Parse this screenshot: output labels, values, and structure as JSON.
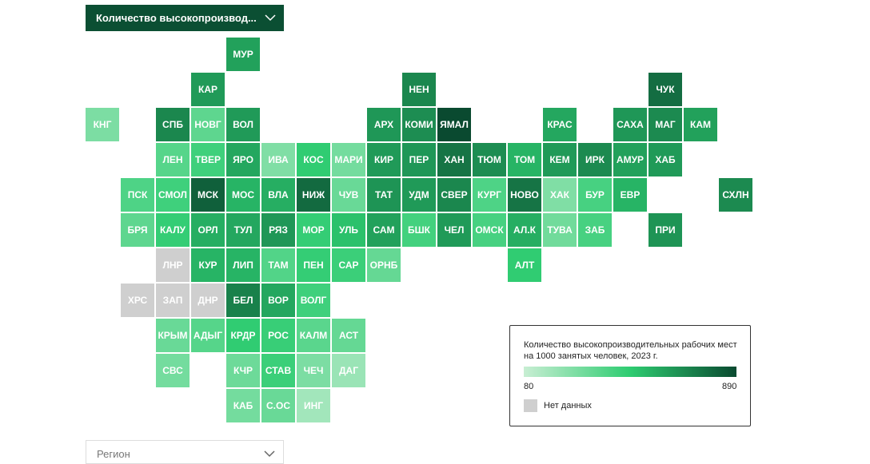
{
  "dropdown": {
    "label": "Количество высокопроизвод..."
  },
  "map": {
    "type": "tile-map",
    "scale": {
      "min": 80,
      "max": 890,
      "colors": [
        "#c8eed3",
        "#2ecc71",
        "#0a4a30"
      ]
    },
    "no_data_color": "#cfcfcf",
    "tiles": [
      {
        "label": "МУР",
        "value": 620
      },
      {
        "label": "КАР",
        "value": 640
      },
      {
        "label": "НЕН",
        "value": 700
      },
      {
        "label": "ЧУК",
        "value": 780
      },
      {
        "label": "КНГ",
        "value": 280
      },
      {
        "label": "СПБ",
        "value": 700
      },
      {
        "label": "НОВГ",
        "value": 360
      },
      {
        "label": "ВОЛ",
        "value": 640
      },
      {
        "label": "АРХ",
        "value": 650
      },
      {
        "label": "КОМИ",
        "value": 680
      },
      {
        "label": "ЯМАЛ",
        "value": 890
      },
      {
        "label": "КРАС",
        "value": 600
      },
      {
        "label": "САХА",
        "value": 650
      },
      {
        "label": "МАГ",
        "value": 690
      },
      {
        "label": "КАМ",
        "value": 620
      },
      {
        "label": "ЛЕН",
        "value": 380
      },
      {
        "label": "ТВЕР",
        "value": 440
      },
      {
        "label": "ЯРО",
        "value": 600
      },
      {
        "label": "ИВА",
        "value": 270
      },
      {
        "label": "КОС",
        "value": 480
      },
      {
        "label": "МАРИ",
        "value": 300
      },
      {
        "label": "КИР",
        "value": 640
      },
      {
        "label": "ПЕР",
        "value": 650
      },
      {
        "label": "ХАН",
        "value": 760
      },
      {
        "label": "ТЮМ",
        "value": 680
      },
      {
        "label": "ТОМ",
        "value": 560
      },
      {
        "label": "КЕМ",
        "value": 640
      },
      {
        "label": "ИРК",
        "value": 690
      },
      {
        "label": "АМУР",
        "value": 620
      },
      {
        "label": "ХАБ",
        "value": 640
      },
      {
        "label": "ПСК",
        "value": 400
      },
      {
        "label": "СМОЛ",
        "value": 440
      },
      {
        "label": "МСК",
        "value": 820
      },
      {
        "label": "МОС",
        "value": 560
      },
      {
        "label": "ВЛА",
        "value": 580
      },
      {
        "label": "НИЖ",
        "value": 790
      },
      {
        "label": "ЧУВ",
        "value": 330
      },
      {
        "label": "ТАТ",
        "value": 660
      },
      {
        "label": "УДМ",
        "value": 640
      },
      {
        "label": "СВЕР",
        "value": 700
      },
      {
        "label": "КУРГ",
        "value": 400
      },
      {
        "label": "НОВО",
        "value": 760
      },
      {
        "label": "ХАК",
        "value": 270
      },
      {
        "label": "БУР",
        "value": 420
      },
      {
        "label": "ЕВР",
        "value": 560
      },
      {
        "label": "СХЛН",
        "value": 690
      },
      {
        "label": "БРЯ",
        "value": 360
      },
      {
        "label": "КАЛУ",
        "value": 470
      },
      {
        "label": "ОРЛ",
        "value": 580
      },
      {
        "label": "ТУЛ",
        "value": 600
      },
      {
        "label": "РЯЗ",
        "value": 650
      },
      {
        "label": "МОР",
        "value": 470
      },
      {
        "label": "УЛЬ",
        "value": 520
      },
      {
        "label": "САМ",
        "value": 620
      },
      {
        "label": "БШК",
        "value": 430
      },
      {
        "label": "ЧЕЛ",
        "value": 640
      },
      {
        "label": "ОМСК",
        "value": 420
      },
      {
        "label": "АЛ.К",
        "value": 580
      },
      {
        "label": "ТУВА",
        "value": 310
      },
      {
        "label": "ЗАБ",
        "value": 420
      },
      {
        "label": "ПРИ",
        "value": 660
      },
      {
        "label": "ЛНР",
        "value": null
      },
      {
        "label": "КУР",
        "value": 560
      },
      {
        "label": "ЛИП",
        "value": 560
      },
      {
        "label": "ТАМ",
        "value": 390
      },
      {
        "label": "ПЕН",
        "value": 470
      },
      {
        "label": "САР",
        "value": 450
      },
      {
        "label": "ОРНБ",
        "value": 340
      },
      {
        "label": "АЛТ",
        "value": 480
      },
      {
        "label": "ХРС",
        "value": null
      },
      {
        "label": "ЗАП",
        "value": null
      },
      {
        "label": "ДНР",
        "value": null
      },
      {
        "label": "БЕЛ",
        "value": 720
      },
      {
        "label": "ВОР",
        "value": 600
      },
      {
        "label": "ВОЛГ",
        "value": 440
      },
      {
        "label": "КРЫМ",
        "value": 330
      },
      {
        "label": "АДЫГ",
        "value": 380
      },
      {
        "label": "КРДР",
        "value": 480
      },
      {
        "label": "РОС",
        "value": 460
      },
      {
        "label": "КАЛМ",
        "value": 370
      },
      {
        "label": "АСТ",
        "value": 340
      },
      {
        "label": "СВС",
        "value": 300
      },
      {
        "label": "КЧР",
        "value": 320
      },
      {
        "label": "СТАВ",
        "value": 450
      },
      {
        "label": "ЧЕЧ",
        "value": 280
      },
      {
        "label": "ДАГ",
        "value": 200
      },
      {
        "label": "КАБ",
        "value": 300
      },
      {
        "label": "С.ОС",
        "value": 330
      },
      {
        "label": "ИНГ",
        "value": 180
      }
    ]
  },
  "legend": {
    "title": "Количество высокопроизводительных рабочих мест на 1000 занятых человек, 2023 г.",
    "no_data_label": "Нет данных"
  },
  "region_select": {
    "label": "Регион"
  }
}
